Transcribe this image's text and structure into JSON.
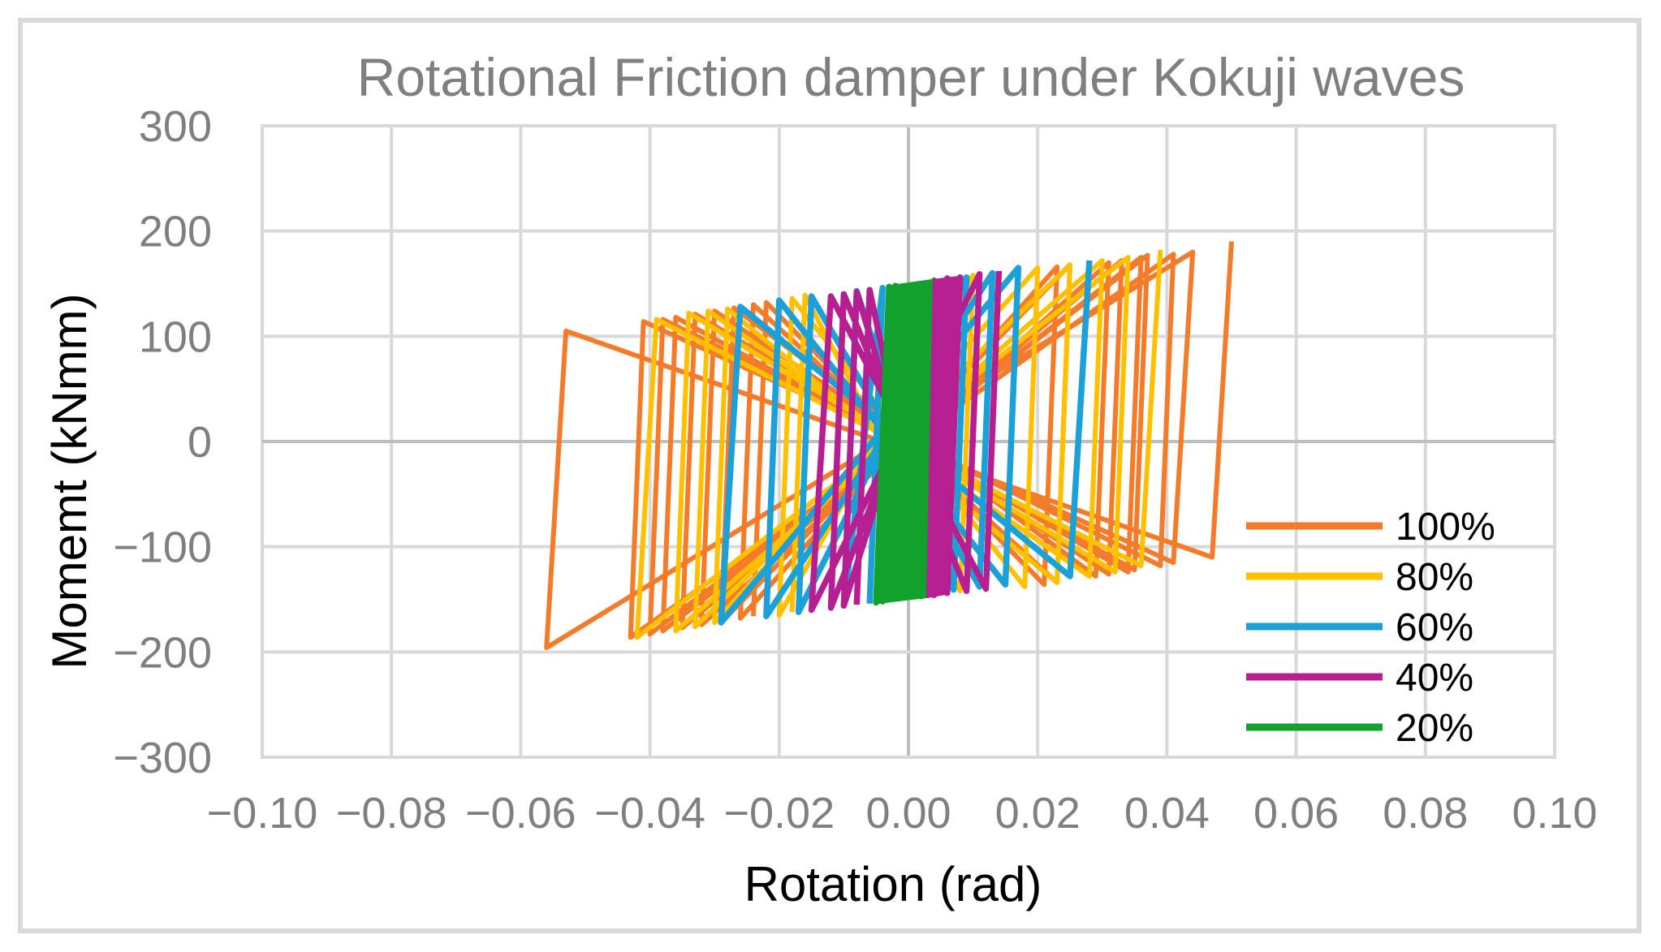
{
  "chart_data": {
    "type": "line",
    "title": "Rotational Friction damper under Kokuji waves",
    "xlabel": "Rotation (rad)",
    "ylabel": "Momemt (kNmm)",
    "xlim": [
      -0.1,
      0.1
    ],
    "ylim": [
      -300,
      300
    ],
    "x_ticks": [
      -0.1,
      -0.08,
      -0.06,
      -0.04,
      -0.02,
      0.0,
      0.02,
      0.04,
      0.06,
      0.08,
      0.1
    ],
    "x_tick_labels": [
      "−0.10",
      "−0.08",
      "−0.06",
      "−0.04",
      "−0.02",
      "0.00",
      "0.02",
      "0.04",
      "0.06",
      "0.08",
      "0.10"
    ],
    "y_ticks": [
      300,
      200,
      100,
      0,
      -100,
      -200,
      -300
    ],
    "y_tick_labels": [
      "300",
      "200",
      "100",
      "0",
      "−100",
      "−200",
      "−300"
    ],
    "grid": true,
    "legend_position": "bottom-right",
    "series": [
      {
        "name": "100%",
        "color": "#f47b2a",
        "stroke_weight": 1,
        "reversals": [
          {
            "rot": 0.05,
            "m": 190
          },
          {
            "rot": 0.047,
            "m": -110
          },
          {
            "rot": -0.053,
            "m": 105
          },
          {
            "rot": -0.056,
            "m": -196
          },
          {
            "rot": 0.044,
            "m": 180
          },
          {
            "rot": 0.041,
            "m": -115
          },
          {
            "rot": -0.041,
            "m": 114
          },
          {
            "rot": -0.043,
            "m": -186
          },
          {
            "rot": 0.041,
            "m": 178
          },
          {
            "rot": 0.039,
            "m": -118
          },
          {
            "rot": -0.038,
            "m": 116
          },
          {
            "rot": -0.04,
            "m": -183
          },
          {
            "rot": 0.037,
            "m": 177
          },
          {
            "rot": 0.035,
            "m": -122
          },
          {
            "rot": -0.036,
            "m": 118
          },
          {
            "rot": -0.038,
            "m": -180
          },
          {
            "rot": 0.036,
            "m": 175
          },
          {
            "rot": 0.034,
            "m": -124
          },
          {
            "rot": -0.033,
            "m": 121
          },
          {
            "rot": -0.035,
            "m": -177
          },
          {
            "rot": 0.033,
            "m": 172
          },
          {
            "rot": 0.031,
            "m": -126
          },
          {
            "rot": -0.03,
            "m": 124
          },
          {
            "rot": -0.032,
            "m": -174
          },
          {
            "rot": 0.031,
            "m": 170
          },
          {
            "rot": 0.029,
            "m": -128
          },
          {
            "rot": -0.027,
            "m": 127
          },
          {
            "rot": -0.029,
            "m": -172
          },
          {
            "rot": 0.025,
            "m": 168
          },
          {
            "rot": 0.023,
            "m": -134
          },
          {
            "rot": -0.024,
            "m": 130
          },
          {
            "rot": -0.026,
            "m": -168
          },
          {
            "rot": 0.023,
            "m": 166
          },
          {
            "rot": 0.021,
            "m": -136
          },
          {
            "rot": -0.022,
            "m": 132
          },
          {
            "rot": -0.024,
            "m": -166
          }
        ]
      },
      {
        "name": "80%",
        "color": "#ffc000",
        "stroke_weight": 1,
        "reversals": [
          {
            "rot": 0.039,
            "m": 182
          },
          {
            "rot": 0.036,
            "m": -118
          },
          {
            "rot": -0.039,
            "m": 116
          },
          {
            "rot": -0.042,
            "m": -186
          },
          {
            "rot": 0.034,
            "m": 175
          },
          {
            "rot": 0.032,
            "m": -124
          },
          {
            "rot": -0.034,
            "m": 122
          },
          {
            "rot": -0.036,
            "m": -180
          },
          {
            "rot": 0.03,
            "m": 172
          },
          {
            "rot": 0.028,
            "m": -128
          },
          {
            "rot": -0.031,
            "m": 124
          },
          {
            "rot": -0.033,
            "m": -176
          },
          {
            "rot": 0.025,
            "m": 168
          },
          {
            "rot": 0.023,
            "m": -134
          },
          {
            "rot": -0.028,
            "m": 126
          },
          {
            "rot": -0.03,
            "m": -172
          },
          {
            "rot": 0.02,
            "m": 165
          },
          {
            "rot": 0.018,
            "m": -138
          },
          {
            "rot": -0.018,
            "m": 136
          },
          {
            "rot": -0.02,
            "m": -165
          },
          {
            "rot": 0.01,
            "m": 158
          },
          {
            "rot": 0.008,
            "m": -142
          },
          {
            "rot": -0.016,
            "m": 139
          },
          {
            "rot": -0.018,
            "m": -162
          }
        ]
      },
      {
        "name": "60%",
        "color": "#1ca0d8",
        "stroke_weight": 1.25,
        "reversals": [
          {
            "rot": 0.028,
            "m": 172
          },
          {
            "rot": 0.025,
            "m": -128
          },
          {
            "rot": -0.026,
            "m": 128
          },
          {
            "rot": -0.029,
            "m": -172
          },
          {
            "rot": 0.017,
            "m": 165
          },
          {
            "rot": 0.015,
            "m": -136
          },
          {
            "rot": -0.02,
            "m": 134
          },
          {
            "rot": -0.022,
            "m": -166
          },
          {
            "rot": 0.013,
            "m": 160
          },
          {
            "rot": 0.011,
            "m": -138
          },
          {
            "rot": -0.015,
            "m": 138
          },
          {
            "rot": -0.017,
            "m": -162
          },
          {
            "rot": 0.009,
            "m": 156
          },
          {
            "rot": 0.007,
            "m": -141
          },
          {
            "rot": -0.008,
            "m": 143
          },
          {
            "rot": -0.01,
            "m": -156
          },
          {
            "rot": -0.004,
            "m": 146
          },
          {
            "rot": -0.006,
            "m": -154
          }
        ]
      },
      {
        "name": "40%",
        "color": "#b51f91",
        "stroke_weight": 1.25,
        "reversals": [
          {
            "rot": 0.014,
            "m": 162
          },
          {
            "rot": 0.012,
            "m": -140
          },
          {
            "rot": -0.012,
            "m": 138
          },
          {
            "rot": -0.015,
            "m": -160
          },
          {
            "rot": 0.011,
            "m": 159
          },
          {
            "rot": 0.009,
            "m": -142
          },
          {
            "rot": -0.01,
            "m": 140
          },
          {
            "rot": -0.012,
            "m": -158
          },
          {
            "rot": 0.008,
            "m": 156
          },
          {
            "rot": 0.006,
            "m": -144
          },
          {
            "rot": -0.008,
            "m": 142
          },
          {
            "rot": -0.01,
            "m": -156
          },
          {
            "rot": 0.006,
            "m": 155
          },
          {
            "rot": 0.004,
            "m": -146
          },
          {
            "rot": -0.006,
            "m": 144
          },
          {
            "rot": -0.008,
            "m": -155
          }
        ]
      },
      {
        "name": "20%",
        "color": "#12a12c",
        "stroke_weight": 1.25,
        "reversals": [
          {
            "rot": 0.005,
            "m": 154
          },
          {
            "rot": 0.003,
            "m": -146
          },
          {
            "rot": -0.003,
            "m": 147
          },
          {
            "rot": -0.005,
            "m": -153
          },
          {
            "rot": 0.004,
            "m": 153
          },
          {
            "rot": 0.002,
            "m": -147
          },
          {
            "rot": -0.002,
            "m": 148
          },
          {
            "rot": -0.004,
            "m": -152
          },
          {
            "rot": 0.004,
            "m": 153
          },
          {
            "rot": 0.002,
            "m": -147
          },
          {
            "rot": -0.003,
            "m": 147
          },
          {
            "rot": -0.005,
            "m": -153
          }
        ]
      }
    ]
  }
}
